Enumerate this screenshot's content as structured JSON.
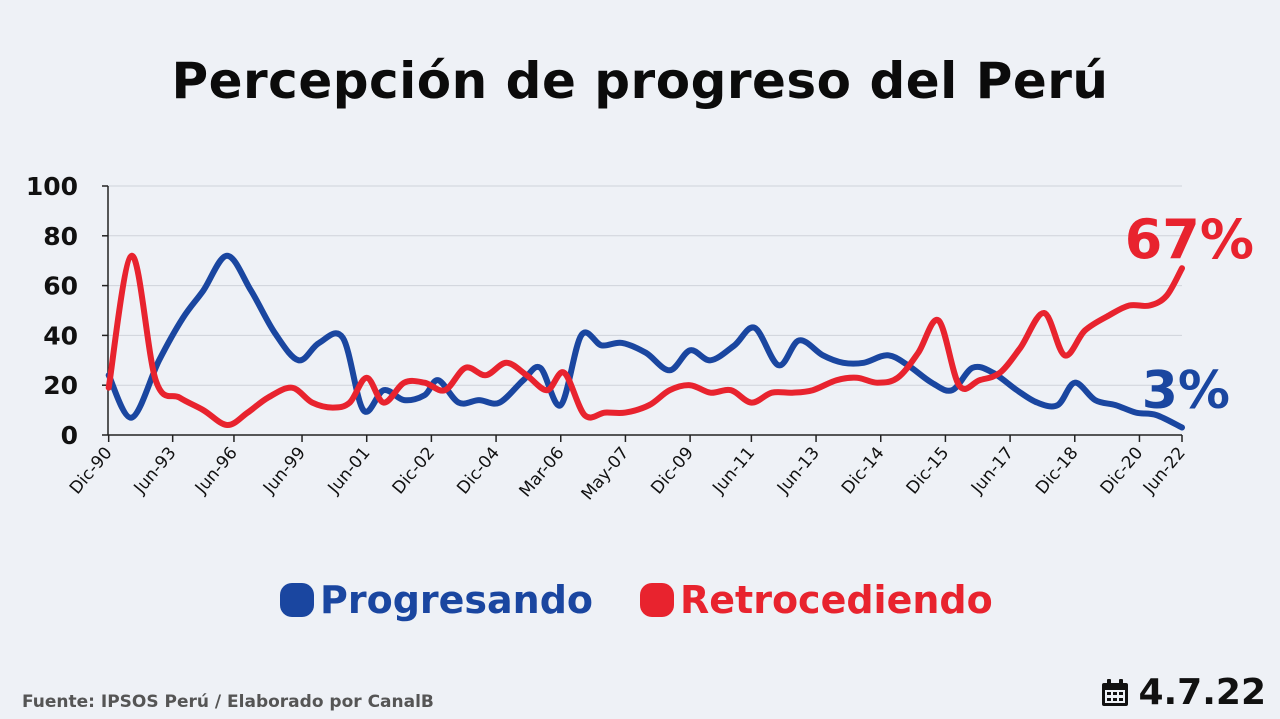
{
  "title": "Percepción de progreso del Perú",
  "source": "Fuente: IPSOS Perú / Elaborado por CanalB",
  "date": "4.7.22",
  "date_icon": "calendar-icon",
  "chart_data": {
    "type": "line",
    "ylim": [
      0,
      100
    ],
    "yticks": [
      0,
      20,
      40,
      60,
      80,
      100
    ],
    "xlim": [
      1990.9,
      2022.45
    ],
    "xticks": [
      {
        "label": "Dic-90",
        "x": 1990.92
      },
      {
        "label": "Jun-93",
        "x": 1992.8
      },
      {
        "label": "Jun-96",
        "x": 1994.6
      },
      {
        "label": "Jun-99",
        "x": 1996.6
      },
      {
        "label": "Jun-01",
        "x": 1998.5
      },
      {
        "label": "Dic-02",
        "x": 2000.4
      },
      {
        "label": "Dic-04",
        "x": 2002.3
      },
      {
        "label": "Mar-06",
        "x": 2004.2
      },
      {
        "label": "May-07",
        "x": 2006.1
      },
      {
        "label": "Dic-09",
        "x": 2008.0
      },
      {
        "label": "Jun-11",
        "x": 2009.8
      },
      {
        "label": "Jun-13",
        "x": 2011.7
      },
      {
        "label": "Dic-14",
        "x": 2013.6
      },
      {
        "label": "Dic-15",
        "x": 2015.5
      },
      {
        "label": "Jun-17",
        "x": 2017.4
      },
      {
        "label": "Dic-18",
        "x": 2019.3
      },
      {
        "label": "Dic-20",
        "x": 2021.2
      },
      {
        "label": "Jun-22",
        "x": 2022.45
      }
    ],
    "legend_position": "bottom-center",
    "series": [
      {
        "name": "Progresando",
        "color": "#1a46a0",
        "end_label": "3%",
        "points": [
          [
            1990.92,
            24
          ],
          [
            1991.6,
            7
          ],
          [
            1992.4,
            30
          ],
          [
            1993.1,
            47
          ],
          [
            1993.7,
            58
          ],
          [
            1994.4,
            72
          ],
          [
            1995.1,
            58
          ],
          [
            1995.8,
            41
          ],
          [
            1996.5,
            30
          ],
          [
            1997.1,
            37
          ],
          [
            1997.8,
            39
          ],
          [
            1998.4,
            10
          ],
          [
            1999.0,
            18
          ],
          [
            1999.6,
            14
          ],
          [
            2000.2,
            16
          ],
          [
            2000.6,
            22
          ],
          [
            2001.2,
            13
          ],
          [
            2001.8,
            14
          ],
          [
            2002.4,
            13
          ],
          [
            2003.1,
            22
          ],
          [
            2003.6,
            27
          ],
          [
            2004.2,
            12
          ],
          [
            2004.8,
            40
          ],
          [
            2005.4,
            36
          ],
          [
            2006.0,
            37
          ],
          [
            2006.7,
            33
          ],
          [
            2007.4,
            26
          ],
          [
            2008.0,
            34
          ],
          [
            2008.6,
            30
          ],
          [
            2009.3,
            36
          ],
          [
            2009.9,
            43
          ],
          [
            2010.6,
            28
          ],
          [
            2011.2,
            38
          ],
          [
            2011.9,
            32
          ],
          [
            2012.5,
            29
          ],
          [
            2013.1,
            29
          ],
          [
            2013.8,
            32
          ],
          [
            2014.4,
            28
          ],
          [
            2015.1,
            21
          ],
          [
            2015.7,
            18
          ],
          [
            2016.3,
            27
          ],
          [
            2016.9,
            25
          ],
          [
            2017.6,
            18
          ],
          [
            2018.2,
            13
          ],
          [
            2018.8,
            12
          ],
          [
            2019.3,
            21
          ],
          [
            2019.9,
            14
          ],
          [
            2020.5,
            12
          ],
          [
            2021.1,
            9
          ],
          [
            2021.7,
            8
          ],
          [
            2022.45,
            3
          ]
        ]
      },
      {
        "name": "Retrocediendo",
        "color": "#e8232e",
        "end_label": "67%",
        "points": [
          [
            1990.92,
            19
          ],
          [
            1991.6,
            72
          ],
          [
            1992.3,
            22
          ],
          [
            1993.0,
            15
          ],
          [
            1993.7,
            10
          ],
          [
            1994.4,
            4
          ],
          [
            1995.0,
            9
          ],
          [
            1995.6,
            15
          ],
          [
            1996.3,
            19
          ],
          [
            1996.9,
            13
          ],
          [
            1997.5,
            11
          ],
          [
            1998.0,
            13
          ],
          [
            1998.5,
            23
          ],
          [
            1999.0,
            13
          ],
          [
            1999.6,
            21
          ],
          [
            2000.2,
            21
          ],
          [
            2000.8,
            18
          ],
          [
            2001.4,
            27
          ],
          [
            2002.0,
            24
          ],
          [
            2002.6,
            29
          ],
          [
            2003.2,
            24
          ],
          [
            2003.8,
            18
          ],
          [
            2004.3,
            25
          ],
          [
            2004.9,
            8
          ],
          [
            2005.5,
            9
          ],
          [
            2006.1,
            9
          ],
          [
            2006.8,
            12
          ],
          [
            2007.4,
            18
          ],
          [
            2008.0,
            20
          ],
          [
            2008.6,
            17
          ],
          [
            2009.2,
            18
          ],
          [
            2009.8,
            13
          ],
          [
            2010.4,
            17
          ],
          [
            2011.0,
            17
          ],
          [
            2011.6,
            18
          ],
          [
            2012.3,
            22
          ],
          [
            2012.9,
            23
          ],
          [
            2013.5,
            21
          ],
          [
            2014.1,
            23
          ],
          [
            2014.7,
            33
          ],
          [
            2015.3,
            46
          ],
          [
            2015.9,
            20
          ],
          [
            2016.5,
            22
          ],
          [
            2017.1,
            25
          ],
          [
            2017.7,
            35
          ],
          [
            2018.4,
            49
          ],
          [
            2019.0,
            32
          ],
          [
            2019.6,
            42
          ],
          [
            2020.3,
            48
          ],
          [
            2020.9,
            52
          ],
          [
            2021.5,
            52
          ],
          [
            2022.0,
            56
          ],
          [
            2022.45,
            67
          ]
        ]
      }
    ]
  }
}
